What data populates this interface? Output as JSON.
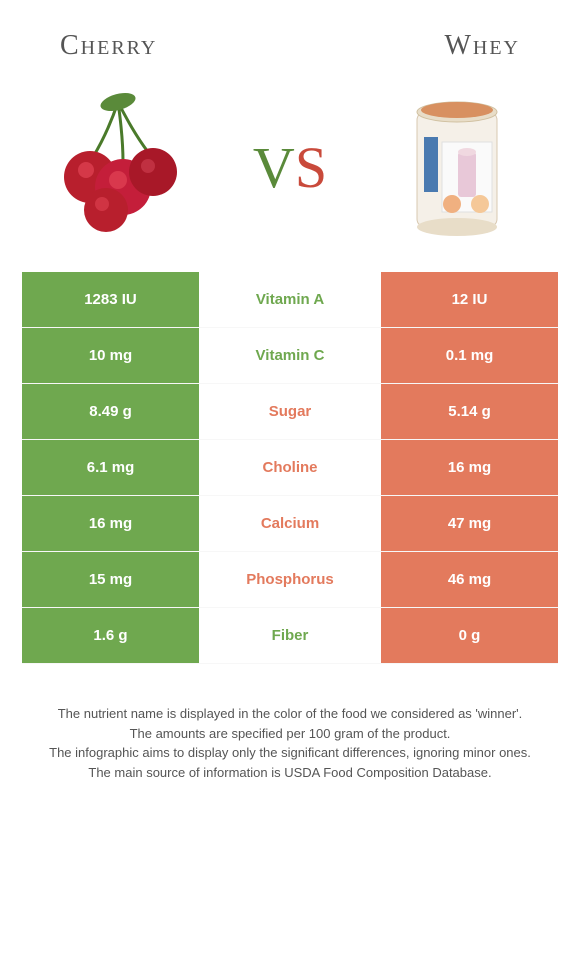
{
  "titles": {
    "left": "Cherry",
    "right": "Whey"
  },
  "vs": {
    "v": "V",
    "s": "S"
  },
  "colors": {
    "left_col": "#6fa84f",
    "right_col": "#e37a5d",
    "winner_left_text": "#6fa84f",
    "winner_right_text": "#e37a5d"
  },
  "rows": [
    {
      "left": "1283 IU",
      "label": "Vitamin A",
      "right": "12 IU",
      "winner": "left"
    },
    {
      "left": "10 mg",
      "label": "Vitamin C",
      "right": "0.1 mg",
      "winner": "left"
    },
    {
      "left": "8.49 g",
      "label": "Sugar",
      "right": "5.14 g",
      "winner": "right"
    },
    {
      "left": "6.1 mg",
      "label": "Choline",
      "right": "16 mg",
      "winner": "right"
    },
    {
      "left": "16 mg",
      "label": "Calcium",
      "right": "47 mg",
      "winner": "right"
    },
    {
      "left": "15 mg",
      "label": "Phosphorus",
      "right": "46 mg",
      "winner": "right"
    },
    {
      "left": "1.6 g",
      "label": "Fiber",
      "right": "0 g",
      "winner": "left"
    }
  ],
  "footer": [
    "The nutrient name is displayed in the color of the food we considered as 'winner'.",
    "The amounts are specified per 100 gram of the product.",
    "The infographic aims to display only the significant differences, ignoring minor ones.",
    "The main source of information is USDA Food Composition Database."
  ]
}
